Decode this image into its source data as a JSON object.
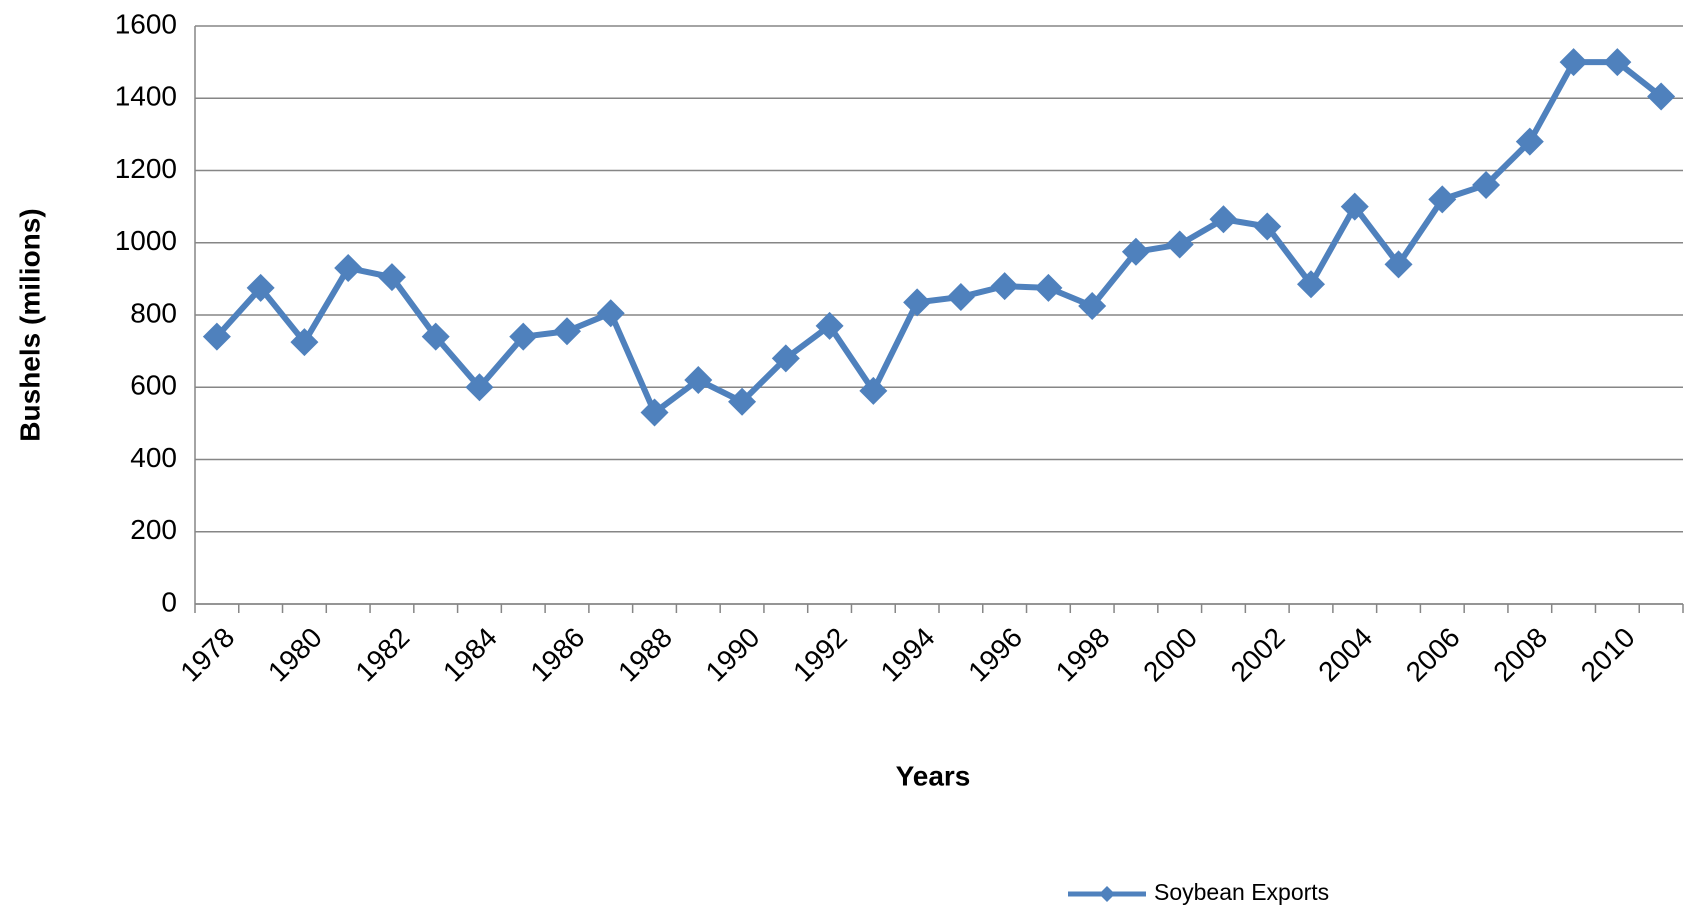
{
  "chart_data": {
    "type": "line",
    "y_label": "Bushels (milions)",
    "x_label": "Years",
    "categories": [
      "1978",
      null,
      "1980",
      null,
      "1982",
      null,
      "1984",
      null,
      "1986",
      null,
      "1988",
      null,
      "1990",
      null,
      "1992",
      null,
      "1994",
      null,
      "1996",
      null,
      "1998",
      null,
      "2000",
      null,
      "2002",
      null,
      "2004",
      null,
      "2006",
      null,
      "2008",
      null,
      "2010",
      null
    ],
    "series": [
      {
        "name": "Soybean Exports",
        "color": "#4f81bd",
        "values": [
          740,
          875,
          725,
          930,
          905,
          740,
          600,
          740,
          755,
          805,
          530,
          620,
          560,
          680,
          770,
          590,
          835,
          850,
          880,
          875,
          825,
          975,
          995,
          1065,
          1045,
          885,
          1100,
          940,
          1120,
          1160,
          1280,
          1500,
          1500,
          1405
        ]
      }
    ],
    "ylim": [
      0,
      1600
    ],
    "yticks": [
      0,
      200,
      400,
      600,
      800,
      1000,
      1200,
      1400,
      1600
    ],
    "grid": true,
    "legend": "bottom"
  }
}
